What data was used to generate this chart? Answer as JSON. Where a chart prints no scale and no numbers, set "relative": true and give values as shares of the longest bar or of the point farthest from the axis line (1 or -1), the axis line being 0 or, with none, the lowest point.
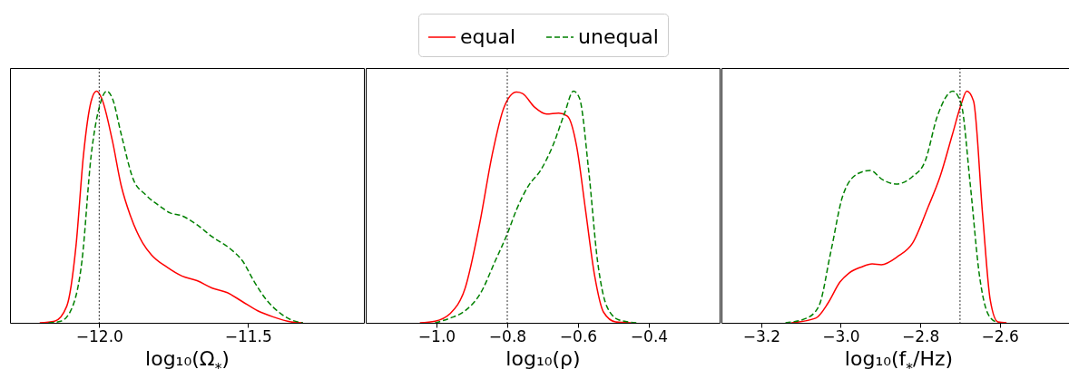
{
  "chart_data": [
    {
      "type": "line",
      "relative": true,
      "xlabel": "log₁₀(Ω$_{*}$)",
      "xlim": [
        -12.3,
        -11.11
      ],
      "xticks": [
        {
          "value": -12,
          "label": "−12.0"
        },
        {
          "value": -11.5,
          "label": "−11.5"
        }
      ],
      "legend": "top",
      "grid": false,
      "ref_lines": [
        {
          "axis": "x",
          "value": -12.0,
          "color": "#000000",
          "line_style": "dotted"
        }
      ],
      "series": [
        {
          "name": "equal",
          "color": "#ff0000",
          "line_style": "solid",
          "x": [
            -12.2,
            -12.15,
            -12.109,
            -12.078,
            -12.053,
            -12.027,
            -12.009,
            -11.992,
            -11.956,
            -11.926,
            -11.895,
            -11.854,
            -11.824,
            -11.773,
            -11.722,
            -11.671,
            -11.62,
            -11.569,
            -11.518,
            -11.467,
            -11.416,
            -11.355,
            -11.315
          ],
          "values": [
            0,
            0.007,
            0.072,
            0.332,
            0.723,
            0.957,
            1.0,
            0.97,
            0.788,
            0.592,
            0.462,
            0.345,
            0.293,
            0.241,
            0.202,
            0.182,
            0.15,
            0.13,
            0.091,
            0.052,
            0.026,
            0.004,
            0
          ]
        },
        {
          "name": "unequal",
          "color": "#008000",
          "line_style": "dashed",
          "x": [
            -12.17,
            -12.129,
            -12.089,
            -12.058,
            -12.027,
            -11.997,
            -11.975,
            -11.956,
            -11.926,
            -11.885,
            -11.844,
            -11.793,
            -11.763,
            -11.722,
            -11.671,
            -11.62,
            -11.559,
            -11.518,
            -11.478,
            -11.437,
            -11.396,
            -11.355,
            -11.315
          ],
          "values": [
            0,
            0.007,
            0.072,
            0.267,
            0.723,
            0.944,
            1.0,
            0.97,
            0.814,
            0.618,
            0.553,
            0.501,
            0.475,
            0.462,
            0.423,
            0.371,
            0.319,
            0.267,
            0.176,
            0.098,
            0.046,
            0.013,
            0
          ]
        }
      ]
    },
    {
      "type": "line",
      "relative": true,
      "xlabel": "log₁₀(ρ)",
      "xlim": [
        -1.2,
        -0.2
      ],
      "xticks": [
        {
          "value": -1,
          "label": "−1.0"
        },
        {
          "value": -0.8,
          "label": "−0.8"
        },
        {
          "value": -0.6,
          "label": "−0.6"
        },
        {
          "value": -0.4,
          "label": "−0.4"
        }
      ],
      "legend": "top",
      "grid": false,
      "ref_lines": [
        {
          "axis": "x",
          "value": -0.8,
          "color": "#000000",
          "line_style": "dotted"
        }
      ],
      "series": [
        {
          "name": "equal",
          "color": "#ff0000",
          "line_style": "solid",
          "x": [
            -1.047,
            -1.004,
            -0.962,
            -0.919,
            -0.877,
            -0.843,
            -0.809,
            -0.774,
            -0.757,
            -0.723,
            -0.689,
            -0.655,
            -0.63,
            -0.604,
            -0.579,
            -0.553,
            -0.528,
            -0.494,
            -0.451
          ],
          "values": [
            0,
            0.007,
            0.039,
            0.15,
            0.436,
            0.723,
            0.931,
            0.996,
            0.99,
            0.931,
            0.901,
            0.905,
            0.892,
            0.762,
            0.488,
            0.202,
            0.046,
            0.004,
            0
          ]
        },
        {
          "name": "unequal",
          "color": "#008000",
          "line_style": "dashed",
          "x": [
            -1.004,
            -0.962,
            -0.919,
            -0.877,
            -0.834,
            -0.8,
            -0.774,
            -0.74,
            -0.706,
            -0.672,
            -0.638,
            -0.613,
            -0.596,
            -0.57,
            -0.545,
            -0.519,
            -0.485,
            -0.434
          ],
          "values": [
            0,
            0.02,
            0.052,
            0.124,
            0.267,
            0.384,
            0.488,
            0.592,
            0.658,
            0.762,
            0.905,
            1.0,
            0.97,
            0.658,
            0.267,
            0.072,
            0.013,
            0
          ]
        }
      ]
    },
    {
      "type": "line",
      "relative": true,
      "xlabel": "log₁₀(f$_{*}$/Hz)",
      "xlim": [
        -3.3,
        -2.41
      ],
      "xticks": [
        {
          "value": -3.2,
          "label": "−3.2"
        },
        {
          "value": -3,
          "label": "−3.0"
        },
        {
          "value": -2.8,
          "label": "−2.8"
        },
        {
          "value": -2.6,
          "label": "−2.6"
        }
      ],
      "legend": "top",
      "grid": false,
      "ref_lines": [
        {
          "axis": "x",
          "value": -2.7,
          "color": "#000000",
          "line_style": "dotted"
        }
      ],
      "series": [
        {
          "name": "equal",
          "color": "#ff0000",
          "line_style": "solid",
          "x": [
            -3.124,
            -3.063,
            -3.032,
            -3.002,
            -2.979,
            -2.948,
            -2.921,
            -2.898,
            -2.857,
            -2.819,
            -2.78,
            -2.75,
            -2.719,
            -2.697,
            -2.683,
            -2.666,
            -2.643,
            -2.624,
            -2.605,
            -2.583
          ],
          "values": [
            0,
            0.02,
            0.085,
            0.176,
            0.215,
            0.241,
            0.254,
            0.251,
            0.286,
            0.345,
            0.501,
            0.632,
            0.814,
            0.944,
            1.0,
            0.957,
            0.462,
            0.098,
            0.004,
            0
          ]
        },
        {
          "name": "unequal",
          "color": "#008000",
          "line_style": "dashed",
          "x": [
            -3.139,
            -3.086,
            -3.055,
            -3.025,
            -2.994,
            -2.956,
            -2.926,
            -2.895,
            -2.861,
            -2.819,
            -2.788,
            -2.757,
            -2.718,
            -2.697,
            -2.674,
            -2.651,
            -2.628,
            -2.605
          ],
          "values": [
            0,
            0.02,
            0.072,
            0.306,
            0.553,
            0.645,
            0.658,
            0.618,
            0.599,
            0.632,
            0.697,
            0.892,
            1.0,
            0.944,
            0.592,
            0.202,
            0.033,
            0
          ]
        }
      ]
    }
  ]
}
